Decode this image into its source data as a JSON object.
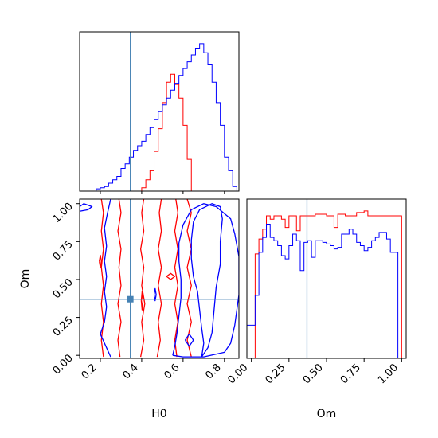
{
  "chart_data": {
    "type": "corner",
    "parameters": [
      "H0",
      "Om"
    ],
    "truth": {
      "H0": 0.345,
      "Om": 0.37
    },
    "colors": {
      "series_a": "#ff0000",
      "series_b": "#0000ff",
      "truth": "#4682b4",
      "axes": "#000000"
    },
    "panels": [
      {
        "id": "hist-H0",
        "type": "histogram",
        "param": "H0",
        "xlim": [
          0.1,
          0.87
        ],
        "bin_edges": [
          0.1,
          0.12,
          0.14,
          0.16,
          0.18,
          0.2,
          0.22,
          0.24,
          0.26,
          0.28,
          0.3,
          0.32,
          0.34,
          0.36,
          0.38,
          0.4,
          0.42,
          0.44,
          0.46,
          0.48,
          0.5,
          0.52,
          0.54,
          0.56,
          0.58,
          0.6,
          0.62,
          0.64,
          0.66,
          0.68,
          0.7,
          0.72,
          0.74,
          0.76,
          0.78,
          0.8,
          0.82,
          0.84,
          0.86
        ],
        "series": [
          {
            "color_key": "series_a",
            "counts": [
              0,
              0,
              0,
              0,
              0,
              0,
              0,
              0,
              0,
              0,
              0,
              0,
              0,
              0,
              0,
              3,
              10,
              18,
              35,
              55,
              78,
              96,
              103,
              94,
              82,
              58,
              28,
              0,
              0,
              0,
              0,
              0,
              0,
              0,
              0,
              0,
              0,
              0
            ]
          },
          {
            "color_key": "series_b",
            "counts": [
              0,
              0,
              0,
              0,
              2,
              3,
              4,
              7,
              10,
              13,
              20,
              24,
              30,
              36,
              40,
              44,
              50,
              56,
              63,
              70,
              76,
              82,
              89,
              95,
              102,
              108,
              114,
              120,
              126,
              130,
              122,
              112,
              96,
              78,
              58,
              30,
              18,
              4
            ]
          }
        ],
        "show_truth_line": true
      },
      {
        "id": "joint-H0-Om",
        "type": "contour",
        "xparam": "H0",
        "yparam": "Om",
        "xlim": [
          0.1,
          0.87
        ],
        "ylim": [
          -0.02,
          1.03
        ],
        "xticks": [
          "0.2",
          "0.4",
          "0.6",
          "0.8"
        ],
        "yticks": [
          "0.00",
          "0.25",
          "0.50",
          "0.75",
          "1.00"
        ],
        "xlabel": "H0",
        "ylabel": "Om",
        "series": [
          {
            "color_key": "series_a",
            "contours": [
              [
                [
                  0.215,
                  -0.01
                ],
                [
                  0.205,
                  0.1
                ],
                [
                  0.215,
                  0.22
                ],
                [
                  0.205,
                  0.34
                ],
                [
                  0.215,
                  0.46
                ],
                [
                  0.205,
                  0.58
                ],
                [
                  0.215,
                  0.7
                ],
                [
                  0.205,
                  0.82
                ],
                [
                  0.215,
                  0.94
                ],
                [
                  0.205,
                  1.03
                ]
              ],
              [
                [
                  0.295,
                  -0.01
                ],
                [
                  0.285,
                  0.1
                ],
                [
                  0.3,
                  0.22
                ],
                [
                  0.285,
                  0.34
                ],
                [
                  0.3,
                  0.46
                ],
                [
                  0.29,
                  0.58
                ],
                [
                  0.3,
                  0.7
                ],
                [
                  0.285,
                  0.82
                ],
                [
                  0.3,
                  0.94
                ],
                [
                  0.29,
                  1.03
                ]
              ],
              [
                [
                  0.395,
                  -0.01
                ],
                [
                  0.41,
                  0.1
                ],
                [
                  0.4,
                  0.22
                ],
                [
                  0.415,
                  0.34
                ],
                [
                  0.4,
                  0.46
                ],
                [
                  0.41,
                  0.58
                ],
                [
                  0.395,
                  0.7
                ],
                [
                  0.41,
                  0.82
                ],
                [
                  0.4,
                  0.94
                ],
                [
                  0.41,
                  1.03
                ]
              ],
              [
                [
                  0.64,
                  -0.01
                ],
                [
                  0.62,
                  0.1
                ],
                [
                  0.64,
                  0.22
                ],
                [
                  0.62,
                  0.34
                ],
                [
                  0.64,
                  0.46
                ],
                [
                  0.62,
                  0.58
                ],
                [
                  0.64,
                  0.7
                ],
                [
                  0.62,
                  0.82
                ],
                [
                  0.64,
                  0.94
                ],
                [
                  0.62,
                  1.03
                ]
              ],
              [
                [
                  0.475,
                  -0.01
                ],
                [
                  0.49,
                  0.1
                ],
                [
                  0.48,
                  0.22
                ],
                [
                  0.495,
                  0.34
                ],
                [
                  0.48,
                  0.46
                ],
                [
                  0.495,
                  0.58
                ],
                [
                  0.48,
                  0.7
                ],
                [
                  0.495,
                  0.82
                ],
                [
                  0.485,
                  0.94
                ],
                [
                  0.495,
                  1.03
                ]
              ],
              [
                [
                  0.57,
                  -0.01
                ],
                [
                  0.56,
                  0.1
                ],
                [
                  0.575,
                  0.22
                ],
                [
                  0.56,
                  0.34
                ],
                [
                  0.575,
                  0.46
                ],
                [
                  0.56,
                  0.58
                ],
                [
                  0.575,
                  0.7
                ],
                [
                  0.56,
                  0.82
                ],
                [
                  0.575,
                  0.94
                ],
                [
                  0.565,
                  1.03
                ]
              ],
              [
                [
                  0.195,
                  0.62
                ],
                [
                  0.2,
                  0.66
                ],
                [
                  0.205,
                  0.62
                ],
                [
                  0.2,
                  0.58
                ],
                [
                  0.195,
                  0.62
                ]
              ],
              [
                [
                  0.398,
                  0.36
                ],
                [
                  0.402,
                  0.42
                ],
                [
                  0.406,
                  0.36
                ],
                [
                  0.402,
                  0.3
                ],
                [
                  0.398,
                  0.36
                ]
              ],
              [
                [
                  0.52,
                  0.52
                ],
                [
                  0.54,
                  0.54
                ],
                [
                  0.56,
                  0.52
                ],
                [
                  0.54,
                  0.5
                ],
                [
                  0.52,
                  0.52
                ]
              ]
            ]
          },
          {
            "color_key": "series_b",
            "contours": [
              [
                [
                  0.25,
                  -0.01
                ],
                [
                  0.22,
                  0.08
                ],
                [
                  0.2,
                  0.14
                ],
                [
                  0.22,
                  0.22
                ],
                [
                  0.23,
                  0.32
                ],
                [
                  0.22,
                  0.42
                ],
                [
                  0.23,
                  0.52
                ],
                [
                  0.22,
                  0.62
                ],
                [
                  0.23,
                  0.72
                ],
                [
                  0.22,
                  0.84
                ],
                [
                  0.235,
                  0.94
                ],
                [
                  0.25,
                  1.03
                ]
              ],
              [
                [
                  0.69,
                  -0.01
                ],
                [
                  0.7,
                  0.08
                ],
                [
                  0.69,
                  0.18
                ],
                [
                  0.68,
                  0.3
                ],
                [
                  0.67,
                  0.42
                ],
                [
                  0.65,
                  0.52
                ],
                [
                  0.64,
                  0.64
                ],
                [
                  0.64,
                  0.76
                ],
                [
                  0.65,
                  0.88
                ],
                [
                  0.68,
                  0.96
                ],
                [
                  0.74,
                  1.0
                ],
                [
                  0.78,
                  0.98
                ],
                [
                  0.79,
                  0.9
                ],
                [
                  0.78,
                  0.75
                ],
                [
                  0.78,
                  0.6
                ],
                [
                  0.76,
                  0.45
                ],
                [
                  0.75,
                  0.3
                ],
                [
                  0.74,
                  0.15
                ],
                [
                  0.72,
                  0.05
                ],
                [
                  0.69,
                  -0.01
                ]
              ],
              [
                [
                  0.55,
                  0.0
                ],
                [
                  0.56,
                  0.06
                ],
                [
                  0.57,
                  0.14
                ],
                [
                  0.58,
                  0.26
                ],
                [
                  0.59,
                  0.38
                ],
                [
                  0.59,
                  0.5
                ],
                [
                  0.58,
                  0.62
                ],
                [
                  0.58,
                  0.74
                ],
                [
                  0.6,
                  0.86
                ],
                [
                  0.64,
                  0.96
                ],
                [
                  0.7,
                  1.0
                ],
                [
                  0.76,
                  0.98
                ],
                [
                  0.83,
                  0.9
                ],
                [
                  0.85,
                  0.8
                ],
                [
                  0.87,
                  0.65
                ],
                [
                  0.87,
                  0.4
                ],
                [
                  0.85,
                  0.2
                ],
                [
                  0.83,
                  0.08
                ],
                [
                  0.8,
                  0.02
                ],
                [
                  0.7,
                  -0.01
                ],
                [
                  0.6,
                  -0.01
                ],
                [
                  0.55,
                  0.0
                ]
              ],
              [
                [
                  0.1,
                  0.95
                ],
                [
                  0.14,
                  0.96
                ],
                [
                  0.16,
                  0.98
                ],
                [
                  0.12,
                  1.0
                ],
                [
                  0.1,
                  0.98
                ]
              ],
              [
                [
                  0.46,
                  0.4
                ],
                [
                  0.465,
                  0.44
                ],
                [
                  0.47,
                  0.4
                ],
                [
                  0.465,
                  0.36
                ],
                [
                  0.46,
                  0.4
                ]
              ],
              [
                [
                  0.61,
                  0.1
                ],
                [
                  0.63,
                  0.14
                ],
                [
                  0.65,
                  0.1
                ],
                [
                  0.63,
                  0.06
                ],
                [
                  0.61,
                  0.1
                ]
              ]
            ]
          }
        ],
        "show_truth_point": true
      },
      {
        "id": "hist-Om",
        "type": "histogram",
        "param": "Om",
        "xlim": [
          -0.03,
          1.03
        ],
        "bin_edges": [
          -0.03,
          0.0,
          0.025,
          0.05,
          0.075,
          0.1,
          0.125,
          0.15,
          0.175,
          0.2,
          0.225,
          0.25,
          0.275,
          0.3,
          0.325,
          0.35,
          0.375,
          0.4,
          0.425,
          0.45,
          0.475,
          0.5,
          0.525,
          0.55,
          0.575,
          0.6,
          0.625,
          0.65,
          0.675,
          0.7,
          0.725,
          0.75,
          0.775,
          0.8,
          0.825,
          0.85,
          0.875,
          0.9,
          0.925,
          0.95,
          0.975,
          1.0,
          1.03
        ],
        "series": [
          {
            "color_key": "series_a",
            "counts": [
              0,
              0,
              63,
              72,
              78,
              86,
              84,
              86,
              86,
              84,
              79,
              86,
              86,
              77,
              86,
              86,
              86,
              86,
              87,
              87,
              87,
              86,
              86,
              79,
              87,
              87,
              86,
              86,
              86,
              88,
              88,
              89,
              86,
              86,
              86,
              86,
              86,
              86,
              86,
              86,
              86,
              0
            ]
          },
          {
            "color_key": "series_b",
            "counts": [
              20,
              20,
              38,
              64,
              73,
              81,
              73,
              71,
              68,
              62,
              60,
              68,
              75,
              71,
              53,
              70,
              71,
              61,
              71,
              71,
              70,
              69,
              68,
              66,
              67,
              75,
              75,
              78,
              75,
              70,
              68,
              65,
              67,
              71,
              73,
              76,
              76,
              72,
              64,
              64,
              0,
              0
            ]
          }
        ],
        "xticks": [
          "0.00",
          "0.25",
          "0.50",
          "0.75",
          "1.00"
        ],
        "xlabel": "Om",
        "show_truth_line": true
      }
    ]
  }
}
